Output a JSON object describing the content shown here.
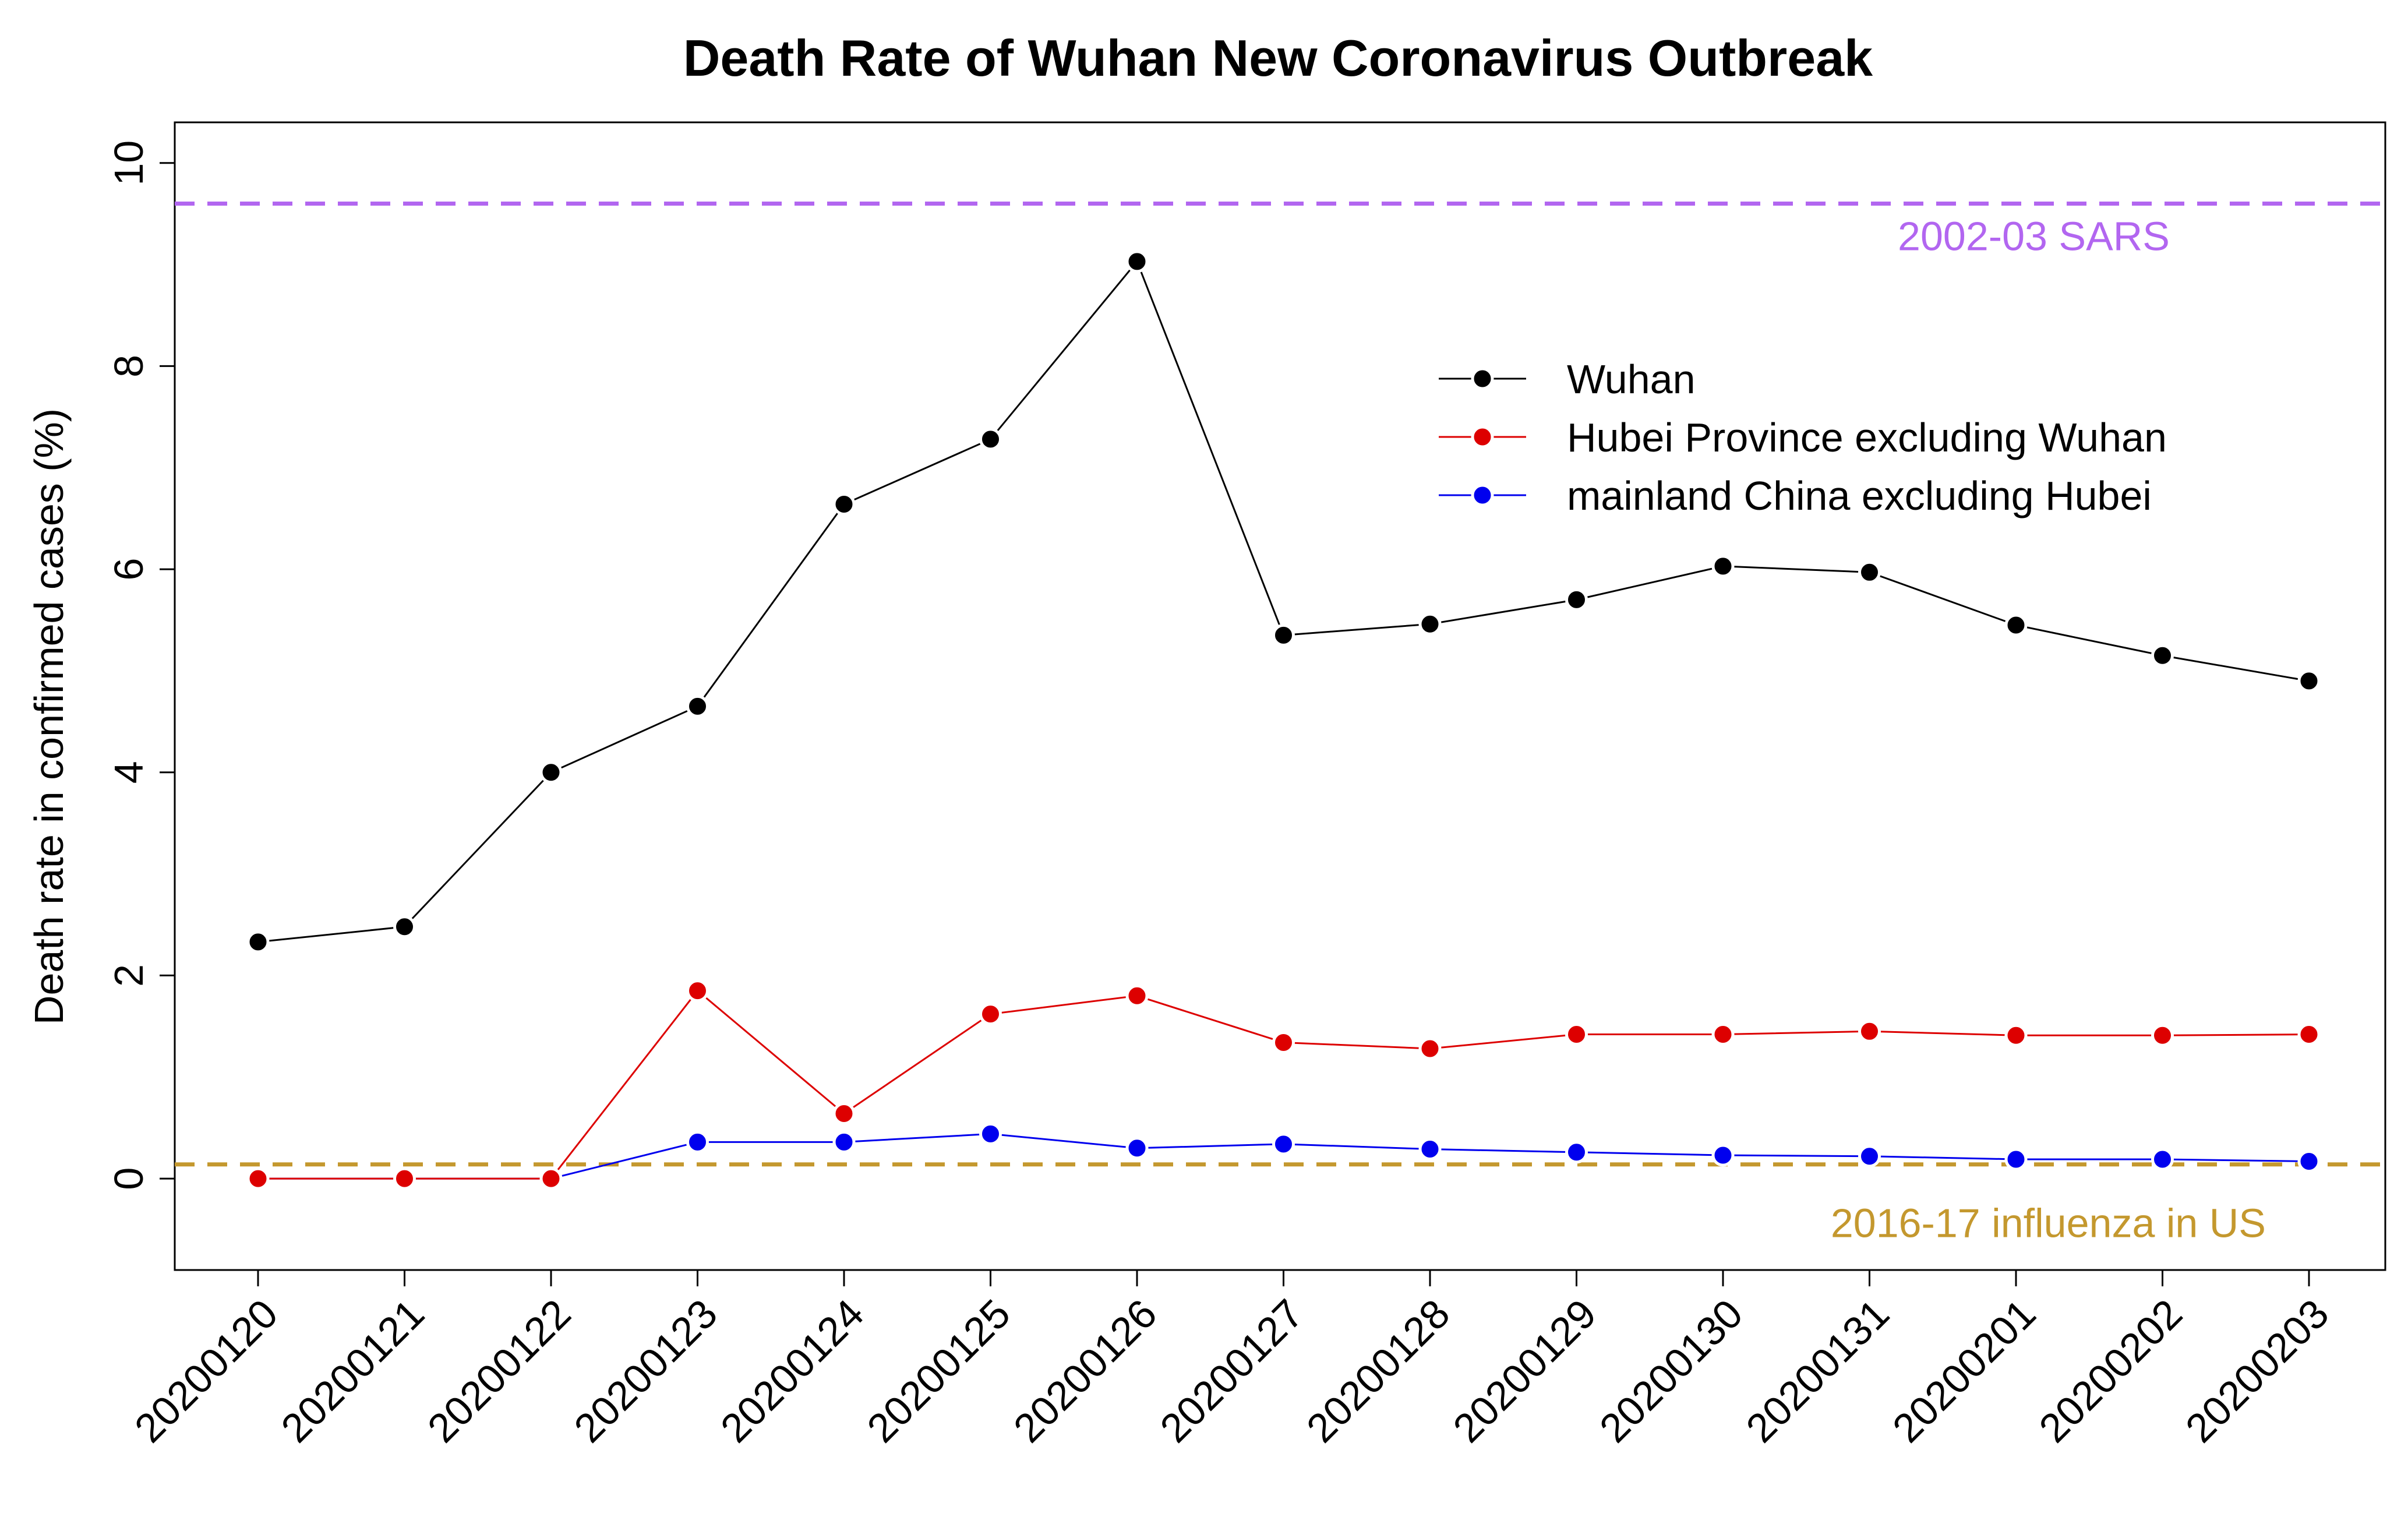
{
  "chart_data": {
    "type": "line",
    "title": "Death Rate of Wuhan New Coronavirus Outbreak",
    "xlabel": "",
    "ylabel": "Death rate in confirmed cases (%)",
    "ylim": [
      -0.9,
      10.4
    ],
    "yticks": [
      0,
      2,
      4,
      6,
      8,
      10
    ],
    "categories": [
      "20200120",
      "20200121",
      "20200122",
      "20200123",
      "20200124",
      "20200125",
      "20200126",
      "20200127",
      "20200128",
      "20200129",
      "20200130",
      "20200131",
      "20200201",
      "20200202",
      "20200203"
    ],
    "series": [
      {
        "name": "Wuhan",
        "color": "#000000",
        "values": [
          2.33,
          2.48,
          4.0,
          4.65,
          6.64,
          7.28,
          9.03,
          5.35,
          5.46,
          5.7,
          6.03,
          5.97,
          5.45,
          5.15,
          4.9
        ]
      },
      {
        "name": "Hubei Province excluding Wuhan",
        "color": "#dd0000",
        "values": [
          0,
          0,
          0,
          1.85,
          0.64,
          1.62,
          1.8,
          1.34,
          1.28,
          1.42,
          1.42,
          1.45,
          1.41,
          1.41,
          1.42
        ]
      },
      {
        "name": "mainland China excluding Hubei",
        "color": "#0000ee",
        "values": [
          0,
          0,
          0,
          0.36,
          0.36,
          0.44,
          0.3,
          0.34,
          0.29,
          0.26,
          0.23,
          0.22,
          0.19,
          0.19,
          0.17
        ]
      }
    ],
    "reference_lines": [
      {
        "label": "2002-03 SARS",
        "value": 9.6,
        "color": "#b266f0"
      },
      {
        "label": "2016-17 influenza in US",
        "value": 0.14,
        "color": "#c4982e"
      }
    ],
    "legend_position": "top-right",
    "grid": false
  }
}
